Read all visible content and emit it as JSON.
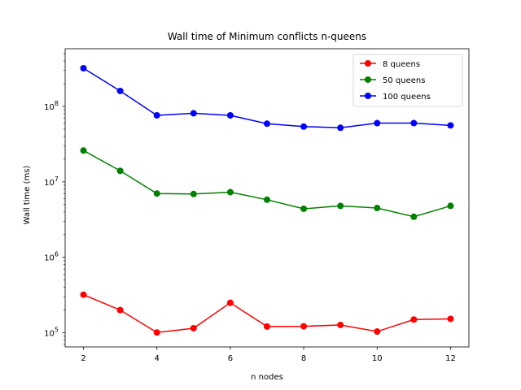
{
  "chart_data": {
    "type": "line",
    "title": "Wall time of Minimum conflicts n-queens",
    "xlabel": "n nodes",
    "ylabel": "Wall time (ms)",
    "x": [
      2,
      3,
      4,
      5,
      6,
      7,
      8,
      9,
      10,
      11,
      12
    ],
    "xlim": [
      1.5,
      12.5
    ],
    "xticks": [
      2,
      4,
      6,
      8,
      10,
      12
    ],
    "yscale": "log",
    "ylim": [
      65000,
      580000000
    ],
    "yticks": [
      {
        "value": 100000,
        "base": "10",
        "exp": "5"
      },
      {
        "value": 1000000,
        "base": "10",
        "exp": "6"
      },
      {
        "value": 10000000,
        "base": "10",
        "exp": "7"
      },
      {
        "value": 100000000,
        "base": "10",
        "exp": "8"
      }
    ],
    "grid": false,
    "legend_position": "top-right",
    "series": [
      {
        "name": "8 queens",
        "color": "#ff0000",
        "values": [
          320000,
          200000,
          101000,
          115000,
          250000,
          121000,
          122000,
          127000,
          104000,
          150000,
          153000
        ]
      },
      {
        "name": "50 queens",
        "color": "#008000",
        "values": [
          26000000,
          14000000,
          7000000,
          6900000,
          7300000,
          5800000,
          4400000,
          4800000,
          4500000,
          3450000,
          4800000
        ]
      },
      {
        "name": "100 queens",
        "color": "#0000ff",
        "values": [
          320000000,
          160000000,
          76000000,
          81000000,
          76000000,
          59000000,
          54000000,
          52000000,
          60000000,
          60000000,
          56000000
        ]
      }
    ]
  }
}
